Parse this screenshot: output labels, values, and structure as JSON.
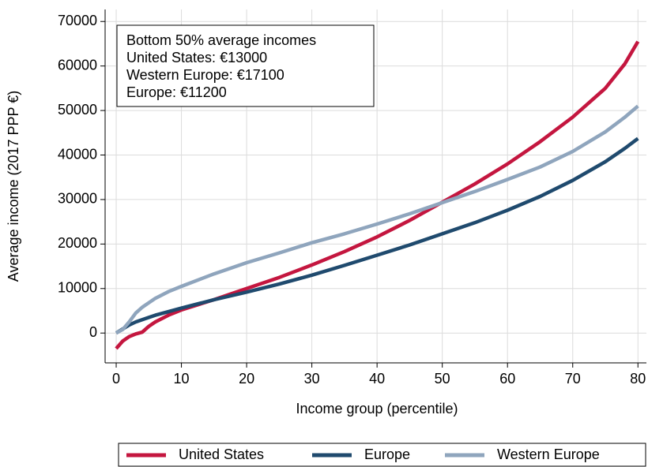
{
  "chart_data": {
    "type": "line",
    "x_label": "Income group (percentile)",
    "y_label": "Average income (2017 PPP €)",
    "annotation": [
      "Bottom 50% average incomes",
      "United States: €13000",
      "Western Europe: €17100",
      "Europe: €11200"
    ],
    "x": [
      0,
      1,
      2,
      3,
      4,
      5,
      6,
      8,
      10,
      15,
      20,
      25,
      30,
      35,
      40,
      45,
      50,
      55,
      60,
      65,
      70,
      75,
      78,
      80
    ],
    "series": [
      {
        "name": "United States",
        "color": "#c4163f",
        "values": [
          -3500,
          -1800,
          -800,
          -200,
          200,
          1500,
          2500,
          4000,
          5200,
          7500,
          10000,
          12500,
          15300,
          18300,
          21600,
          25300,
          29400,
          33500,
          38000,
          43000,
          48500,
          55000,
          60500,
          65500
        ]
      },
      {
        "name": "Europe",
        "color": "#1f4a6e",
        "values": [
          0,
          900,
          1800,
          2500,
          3000,
          3500,
          4000,
          4800,
          5600,
          7500,
          9200,
          11000,
          13000,
          15200,
          17500,
          19800,
          22300,
          24800,
          27600,
          30700,
          34300,
          38500,
          41500,
          43700
        ]
      },
      {
        "name": "Western Europe",
        "color": "#8fa5bd",
        "values": [
          0,
          800,
          2500,
          4500,
          5800,
          6800,
          7800,
          9300,
          10500,
          13300,
          15800,
          18000,
          20300,
          22300,
          24500,
          26800,
          29300,
          31800,
          34500,
          37300,
          40800,
          45200,
          48500,
          51000
        ]
      }
    ],
    "xlim": [
      -1.7,
      81.3
    ],
    "xticks": [
      0,
      10,
      20,
      30,
      40,
      50,
      60,
      70,
      80
    ],
    "ylim": [
      -6700,
      72700
    ],
    "yticks": [
      0,
      10000,
      20000,
      30000,
      40000,
      50000,
      60000,
      70000
    ],
    "grid": true,
    "legend": "bottom"
  }
}
